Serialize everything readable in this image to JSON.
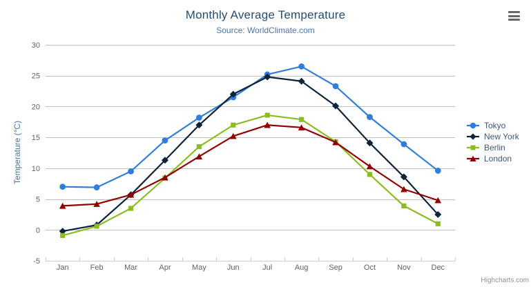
{
  "chart": {
    "credits": "Highcharts.com",
    "export_icon": "hamburger-menu"
  },
  "theme": {
    "title_color": "#274b6d",
    "subtitle_color": "#4d759e",
    "axis_label_color": "#606060",
    "axis_title_color": "#4d759e",
    "legend_text_color": "#3e576f",
    "gridline_color": "#c0c0c0",
    "xaxis_line_color": "#c0d0e0",
    "credits_color": "#909090"
  },
  "chart_data": {
    "type": "line",
    "title": "Monthly Average Temperature",
    "subtitle": "Source: WorldClimate.com",
    "categories": [
      "Jan",
      "Feb",
      "Mar",
      "Apr",
      "May",
      "Jun",
      "Jul",
      "Aug",
      "Sep",
      "Oct",
      "Nov",
      "Dec"
    ],
    "xlabel": "",
    "ylabel": "Temperature (°C)",
    "ylim": [
      -5,
      30
    ],
    "ytick_interval": 5,
    "yticks": [
      -5,
      0,
      5,
      10,
      15,
      20,
      25,
      30
    ],
    "grid": true,
    "legend_position": "right",
    "series": [
      {
        "name": "Tokyo",
        "color": "#2f7ed8",
        "marker": "circle",
        "values": [
          7.0,
          6.9,
          9.5,
          14.5,
          18.2,
          21.5,
          25.2,
          26.5,
          23.3,
          18.3,
          13.9,
          9.6
        ]
      },
      {
        "name": "New York",
        "color": "#0d233a",
        "marker": "diamond",
        "values": [
          -0.2,
          0.8,
          5.7,
          11.3,
          17.0,
          22.0,
          24.8,
          24.1,
          20.1,
          14.1,
          8.6,
          2.5
        ]
      },
      {
        "name": "Berlin",
        "color": "#8bbc21",
        "marker": "square",
        "values": [
          -0.9,
          0.6,
          3.5,
          8.4,
          13.5,
          17.0,
          18.6,
          17.9,
          14.3,
          9.0,
          3.9,
          1.0
        ]
      },
      {
        "name": "London",
        "color": "#910000",
        "marker": "triangle",
        "values": [
          3.9,
          4.2,
          5.7,
          8.5,
          11.9,
          15.2,
          17.0,
          16.6,
          14.2,
          10.3,
          6.6,
          4.8
        ]
      }
    ]
  }
}
